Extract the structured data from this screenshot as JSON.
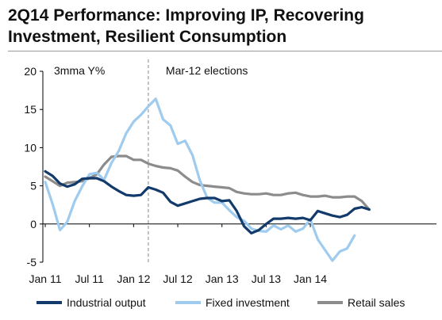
{
  "title": "2Q14 Performance: Improving IP, Recovering Investment, Resilient Consumption",
  "chart_data": {
    "type": "line",
    "ylabel": "3mma Y%",
    "ylim": [
      -5,
      20
    ],
    "yticks": [
      -5,
      0,
      5,
      10,
      15,
      20
    ],
    "xticks": [
      "Jan 11",
      "Jul 11",
      "Jan 12",
      "Jul 12",
      "Jan 13",
      "Jul 13",
      "Jan 14"
    ],
    "x_start": "Jan 11",
    "x_end": "Jun 14",
    "grid": false,
    "legend_position": "bottom",
    "annotation": {
      "label": "Mar-12 elections",
      "x": "Mar 12",
      "style": "dashed vertical line"
    },
    "series": [
      {
        "name": "Industrial output",
        "color": "#123a6b",
        "values": [
          6.9,
          6.3,
          5.3,
          4.9,
          5.2,
          5.9,
          6.0,
          6.0,
          5.6,
          4.9,
          4.3,
          3.8,
          3.7,
          3.8,
          4.8,
          4.5,
          4.1,
          2.9,
          2.4,
          2.7,
          3.0,
          3.3,
          3.4,
          3.4,
          3.0,
          3.1,
          1.7,
          -0.3,
          -1.2,
          -0.8,
          0.0,
          0.7,
          0.7,
          0.8,
          0.7,
          0.8,
          0.5,
          1.7,
          1.4,
          1.1,
          0.9,
          1.2,
          2.0,
          2.2,
          1.9
        ]
      },
      {
        "name": "Fixed investment",
        "color": "#9fcbef",
        "values": [
          5.5,
          2.6,
          -0.8,
          0.3,
          3.0,
          4.9,
          6.5,
          6.7,
          5.8,
          8.0,
          9.6,
          11.9,
          13.4,
          14.3,
          15.4,
          16.4,
          13.7,
          12.9,
          10.5,
          10.9,
          9.0,
          5.7,
          3.4,
          2.8,
          2.8,
          1.8,
          0.9,
          0.4,
          -0.6,
          -0.9,
          -1.0,
          -0.2,
          -0.7,
          -0.2,
          -1.0,
          -0.6,
          0.6,
          -2.0,
          -3.4,
          -4.8,
          -3.6,
          -3.2,
          -1.5
        ]
      },
      {
        "name": "Retail sales",
        "color": "#8c8c8c",
        "values": [
          6.2,
          5.6,
          5.0,
          5.4,
          5.5,
          5.6,
          6.0,
          6.5,
          7.8,
          8.8,
          8.9,
          8.9,
          8.4,
          8.4,
          7.9,
          7.6,
          7.4,
          7.3,
          7.0,
          6.2,
          5.5,
          5.1,
          5.0,
          4.9,
          4.8,
          4.7,
          4.2,
          4.0,
          3.9,
          3.9,
          4.0,
          3.8,
          3.8,
          4.0,
          4.1,
          3.8,
          3.6,
          3.6,
          3.7,
          3.5,
          3.5,
          3.6,
          3.6,
          3.0,
          1.9
        ]
      }
    ]
  }
}
